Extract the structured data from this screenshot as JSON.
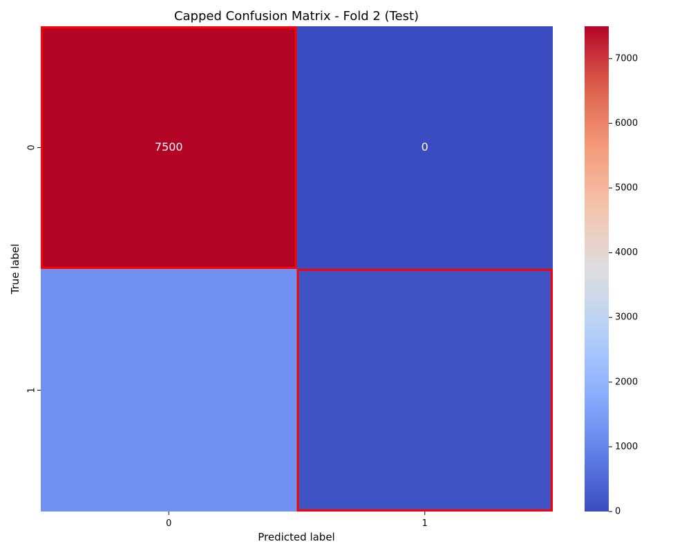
{
  "chart_data": {
    "type": "heatmap",
    "title": "Capped Confusion Matrix - Fold 2 (Test)",
    "xlabel": "Predicted label",
    "ylabel": "True label",
    "x_categories": [
      "0",
      "1"
    ],
    "y_categories": [
      "0",
      "1"
    ],
    "values": [
      [
        7500,
        0
      ],
      [
        1250,
        120
      ]
    ],
    "annotations": [
      [
        "7500",
        "0"
      ],
      [
        "",
        ""
      ]
    ],
    "highlighted_cells": [
      [
        0,
        0
      ],
      [
        1,
        1
      ]
    ],
    "highlight_color": "#ff0000",
    "colormap": "coolwarm",
    "vmin": 0,
    "vmax": 7500,
    "colorbar_ticks": [
      0,
      1000,
      2000,
      3000,
      4000,
      5000,
      6000,
      7000
    ]
  }
}
